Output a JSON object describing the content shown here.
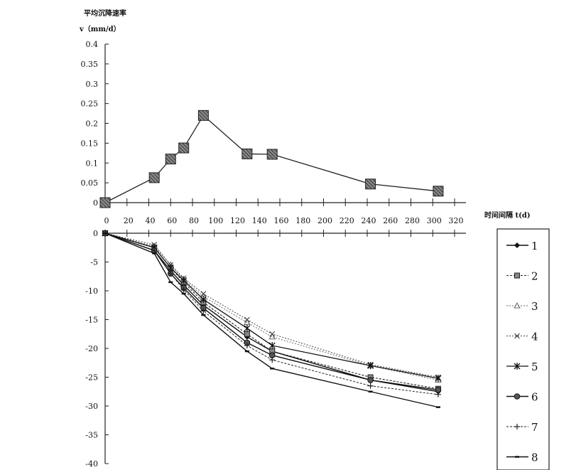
{
  "chart_data": [
    {
      "type": "line",
      "title": "平均沉降速率",
      "ylabel": "v（mm/d）",
      "xlabel": "时间间隔 t(d)",
      "xlim": [
        0,
        320
      ],
      "ylim": [
        0,
        0.4
      ],
      "x_ticks": [
        "0",
        "20",
        "40",
        "60",
        "80",
        "100",
        "120",
        "140",
        "160",
        "180",
        "200",
        "220",
        "240",
        "260",
        "280",
        "300",
        "320"
      ],
      "y_ticks": [
        "0.4",
        "0.35",
        "0.3",
        "0.25",
        "0.2",
        "0.15",
        "0.1",
        "0.05",
        "0"
      ],
      "series": [
        {
          "x": [
            0,
            45,
            60,
            72,
            90,
            130,
            153,
            243,
            305
          ],
          "values": [
            0,
            0.063,
            0.11,
            0.138,
            0.22,
            0.123,
            0.122,
            0.047,
            0.029
          ]
        }
      ]
    },
    {
      "type": "line",
      "xlim": [
        0,
        320
      ],
      "ylim": [
        -40,
        0
      ],
      "y_ticks": [
        "0",
        "-5",
        "-10",
        "-15",
        "-20",
        "-25",
        "-30",
        "-35",
        "-40"
      ],
      "legend_position": "right",
      "x": [
        0,
        45,
        60,
        72,
        90,
        130,
        153,
        243,
        305
      ],
      "series": [
        {
          "name": "1",
          "values": [
            0,
            -3.0,
            -6.5,
            -9.0,
            -12.5,
            -18.0,
            -20.5,
            -25.5,
            -27.5
          ]
        },
        {
          "name": "2",
          "values": [
            0,
            -2.5,
            -6.0,
            -8.5,
            -12.0,
            -17.5,
            -20.5,
            -25.0,
            -27.0
          ]
        },
        {
          "name": "3",
          "values": [
            0,
            -2.3,
            -5.5,
            -8.0,
            -11.0,
            -15.5,
            -18.0,
            -23.0,
            -25.5
          ]
        },
        {
          "name": "4",
          "values": [
            0,
            -2.0,
            -5.5,
            -7.8,
            -10.5,
            -15.0,
            -17.5,
            -22.8,
            -25.0
          ]
        },
        {
          "name": "5",
          "values": [
            0,
            -2.5,
            -6.0,
            -8.2,
            -11.5,
            -16.5,
            -19.5,
            -23.0,
            -25.2
          ]
        },
        {
          "name": "6",
          "values": [
            0,
            -3.0,
            -7.0,
            -9.5,
            -13.0,
            -19.0,
            -21.2,
            -25.5,
            -27.2
          ]
        },
        {
          "name": "7",
          "values": [
            0,
            -3.0,
            -7.0,
            -9.8,
            -13.5,
            -19.5,
            -22.0,
            -26.5,
            -28.0
          ]
        },
        {
          "name": "8",
          "values": [
            0,
            -3.5,
            -8.5,
            -10.5,
            -14.2,
            -20.5,
            -23.5,
            -27.5,
            -30.2
          ]
        }
      ]
    }
  ]
}
